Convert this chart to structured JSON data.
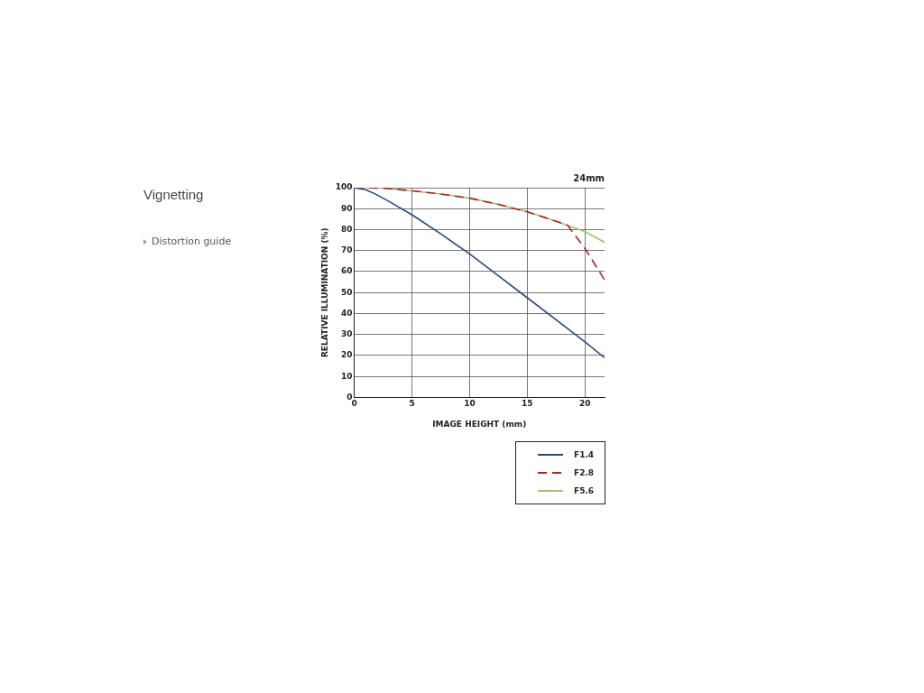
{
  "chart_data": {
    "type": "line",
    "title": "Vignetting",
    "subtitle": "24mm",
    "xlabel": "IMAGE HEIGHT (mm)",
    "ylabel": "RELATIVE ILLUMINATION (%)",
    "annotations": [
      "Distortion guide"
    ],
    "xlim": [
      0,
      21.7
    ],
    "xticks": [
      0,
      5,
      10,
      15,
      20
    ],
    "ylim": [
      0,
      100
    ],
    "yticks": [
      0,
      10,
      20,
      30,
      40,
      50,
      60,
      70,
      80,
      90,
      100
    ],
    "grid": true,
    "legend": "bottom right",
    "marker": "none",
    "series": [
      {
        "name": "F1.4",
        "color": "#2a4a7a",
        "line_style": "solid",
        "x": [
          0,
          1,
          2,
          3,
          5,
          7.5,
          10,
          12.5,
          15,
          17.5,
          20,
          21.7
        ],
        "values": [
          100,
          99,
          96.5,
          93.5,
          87.1,
          78,
          68.4,
          58,
          47.5,
          37,
          26.5,
          18.9
        ]
      },
      {
        "name": "F2.8",
        "color": "#b22222",
        "line_style": "dashed",
        "x": [
          0,
          2.5,
          5,
          7.5,
          10,
          12.5,
          15,
          17.5,
          18.5,
          20,
          21.7
        ],
        "values": [
          100,
          99.8,
          98.5,
          97,
          95,
          92,
          88.5,
          84,
          82,
          71,
          56
        ]
      },
      {
        "name": "F5.6",
        "color": "#a8c070",
        "line_style": "solid",
        "x": [
          0,
          2.5,
          5,
          7.5,
          10,
          12.5,
          15,
          17.5,
          18.5,
          20,
          21.7
        ],
        "values": [
          100,
          99.8,
          98.5,
          97,
          95,
          92,
          88.5,
          84,
          82,
          79,
          74
        ]
      }
    ]
  }
}
